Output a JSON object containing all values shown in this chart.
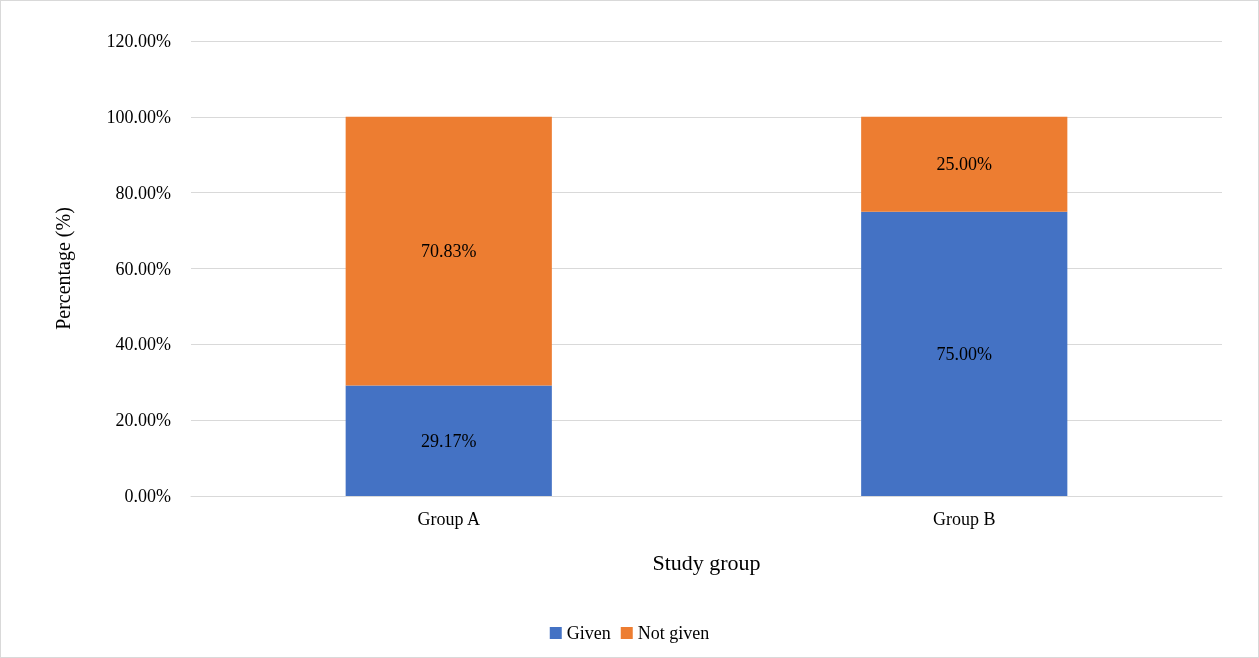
{
  "chart_data": {
    "type": "bar",
    "stacked": true,
    "xlabel": "Study group",
    "ylabel": "Percentage (%)",
    "categories": [
      "Group A",
      "Group B"
    ],
    "series": [
      {
        "name": "Given",
        "color": "#4472c4",
        "values": [
          29.17,
          75.0
        ],
        "value_labels": [
          "29.17%",
          "75.00%"
        ]
      },
      {
        "name": "Not given",
        "color": "#ed7d31",
        "values": [
          70.83,
          25.0
        ],
        "value_labels": [
          "70.83%",
          "25.00%"
        ]
      }
    ],
    "ylim": [
      0,
      120
    ],
    "yticks": [
      {
        "value": 0,
        "label": "0.00%"
      },
      {
        "value": 20,
        "label": "20.00%"
      },
      {
        "value": 40,
        "label": "40.00%"
      },
      {
        "value": 60,
        "label": "60.00%"
      },
      {
        "value": 80,
        "label": "80.00%"
      },
      {
        "value": 100,
        "label": "100.00%"
      },
      {
        "value": 120,
        "label": "120.00%"
      }
    ],
    "grid": "y",
    "legend": "bottom"
  }
}
